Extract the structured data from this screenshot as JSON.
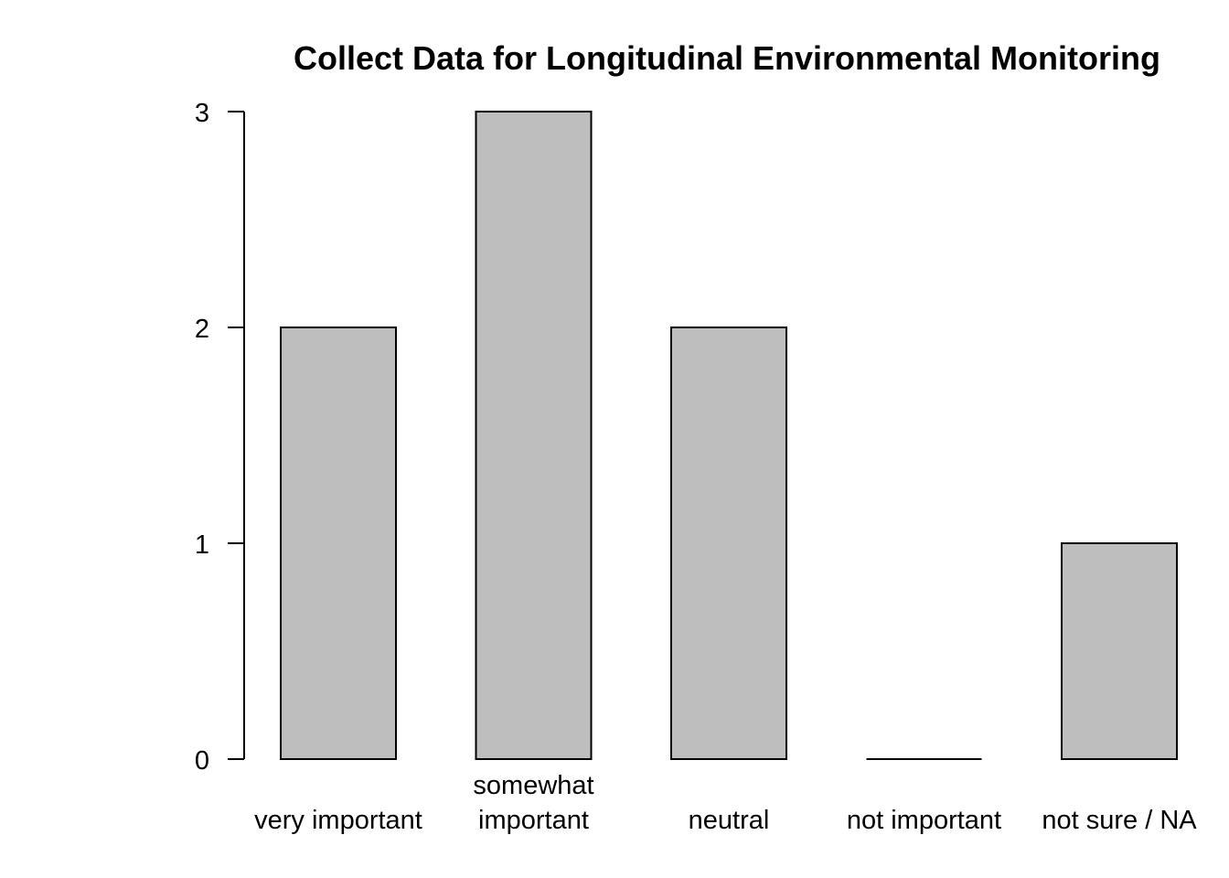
{
  "chart_data": {
    "type": "bar",
    "title": "Collect Data for Longitudinal Environmental Monitoring",
    "categories": [
      [
        "very important"
      ],
      [
        "somewhat",
        "important"
      ],
      [
        "neutral"
      ],
      [
        "not important"
      ],
      [
        "not sure / NA"
      ]
    ],
    "values": [
      2,
      3,
      2,
      0,
      1
    ],
    "ylim": [
      0,
      3
    ],
    "yticks": [
      0,
      1,
      2,
      3
    ],
    "xlabel": "",
    "ylabel": "",
    "grid": false,
    "legend": "none",
    "colors": {
      "bar_fill": "#bebebe",
      "bar_stroke": "#000000",
      "axis": "#000000",
      "background": "#ffffff"
    }
  }
}
